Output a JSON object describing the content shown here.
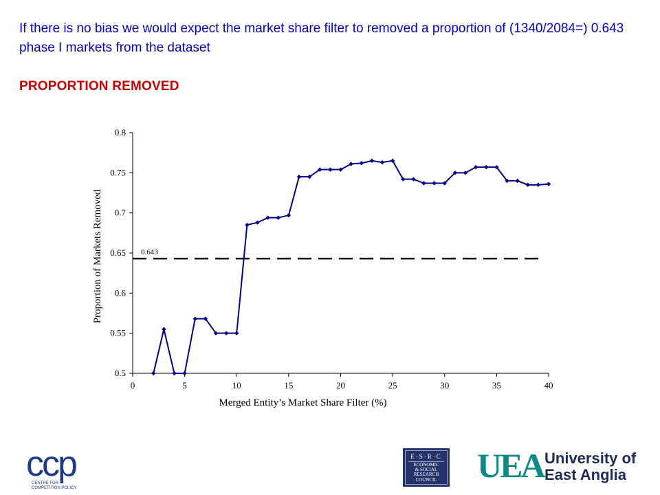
{
  "slide": {
    "intro_text": "If there is no bias we would expect the market share filter to removed a proportion of (1340/2084=) 0.643 phase I markets from the dataset",
    "heading": "PROPORTION REMOVED"
  },
  "logos": {
    "ccp": {
      "mark": "ccp",
      "subtitle_line1": "CENTRE FOR",
      "subtitle_line2": "COMPETITION POLICY"
    },
    "esrc": {
      "title": "E·S·R·C",
      "lines": [
        "ECONOMIC",
        "& SOCIAL",
        "RESEARCH",
        "COUNCIL"
      ]
    },
    "uea": {
      "mark": "UEA",
      "line1": "University of",
      "line2": "East Anglia"
    }
  },
  "chart_data": {
    "type": "line",
    "title": "",
    "xlabel": "Merged Entity’s Market Share Filter (%)",
    "ylabel": "Proportion of Markets Removed",
    "xlim": [
      0,
      40
    ],
    "ylim": [
      0.5,
      0.8
    ],
    "xticks": [
      0,
      5,
      10,
      15,
      20,
      25,
      30,
      35,
      40
    ],
    "yticks": [
      0.5,
      0.55,
      0.6,
      0.65,
      0.7,
      0.75,
      0.8
    ],
    "ytick_labels": [
      "0.5",
      "0.55",
      "0.6",
      "0.65",
      "0.7",
      "0.75",
      "0.8"
    ],
    "grid": false,
    "series": [
      {
        "x": [
          2,
          3,
          4,
          5,
          6,
          7,
          8,
          9,
          10,
          11,
          12,
          13,
          14,
          15,
          16,
          17,
          18,
          19,
          20,
          21,
          22,
          23,
          24,
          25,
          26,
          27,
          28,
          29,
          30,
          31,
          32,
          33,
          34,
          35,
          36,
          37,
          38,
          39,
          40
        ],
        "values": [
          0.5,
          0.555,
          0.5,
          0.5,
          0.568,
          0.568,
          0.55,
          0.55,
          0.55,
          0.685,
          0.688,
          0.694,
          0.694,
          0.697,
          0.745,
          0.745,
          0.754,
          0.754,
          0.754,
          0.761,
          0.762,
          0.765,
          0.763,
          0.765,
          0.742,
          0.742,
          0.737,
          0.737,
          0.737,
          0.75,
          0.75,
          0.757,
          0.757,
          0.757,
          0.74,
          0.74,
          0.735,
          0.735,
          0.736
        ],
        "color": "#00008b"
      }
    ],
    "reference_line": {
      "y": 0.643,
      "label": "0.643",
      "style": "dashed",
      "color": "#000000"
    }
  }
}
